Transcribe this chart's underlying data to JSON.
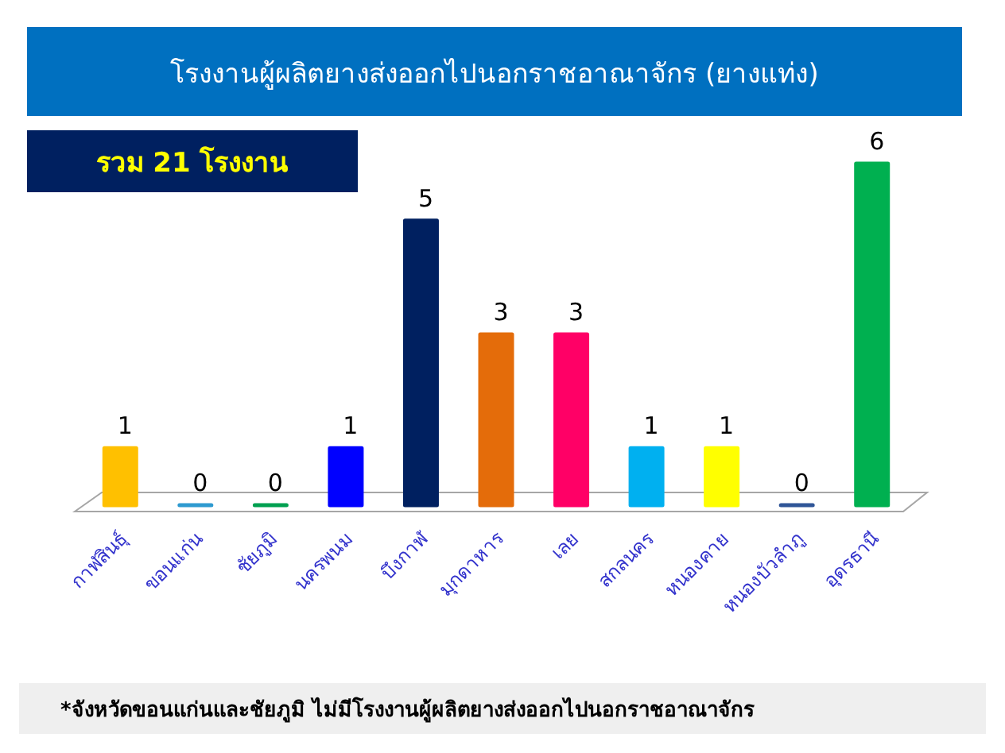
{
  "chart_data": {
    "type": "bar",
    "title": "โรงงานผู้ผลิตยางส่งออกไปนอกราชอาณาจักร (ยางแท่ง)",
    "subtitle": "รวม 21 โรงงาน",
    "categories": [
      "กาฬสินธุ์",
      "ขอนแก่น",
      "ชัยภูมิ",
      "นครพนม",
      "บึงกาฬ",
      "มุกดาหาร",
      "เลย",
      "สกลนคร",
      "หนองคาย",
      "หนองบัวลำภู",
      "อุดรธานี"
    ],
    "values": [
      1,
      0,
      0,
      1,
      5,
      3,
      3,
      1,
      1,
      0,
      6
    ],
    "colors": [
      "#ffc000",
      "#2e9ad0",
      "#00a050",
      "#0000ff",
      "#002060",
      "#e46c0a",
      "#ff0066",
      "#00b0f0",
      "#ffff00",
      "#2f5597",
      "#00b050"
    ],
    "data_labels": true,
    "annotations": [
      "*จังหวัดขอนแก่นและชัยภูมิ ไม่มีโรงงานผู้ผลิตยางส่งออกไปนอกราชอาณาจักร"
    ]
  }
}
